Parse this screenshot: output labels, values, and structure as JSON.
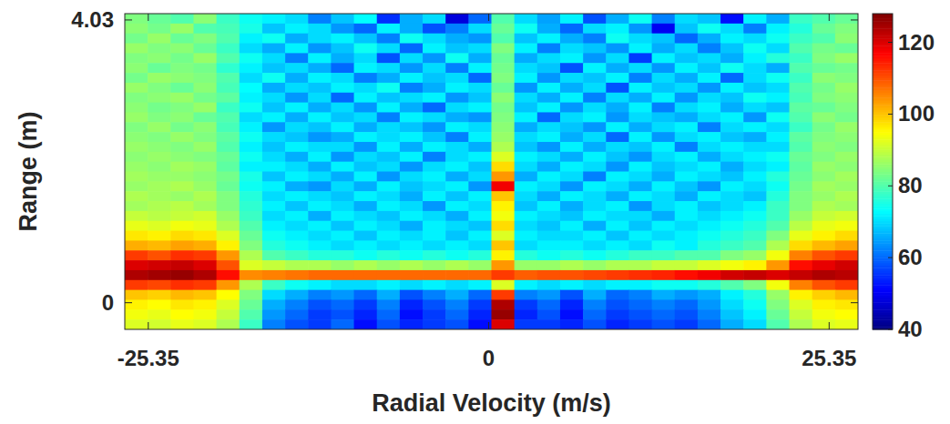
{
  "chart_data": {
    "type": "heatmap",
    "xlabel": "Radial Velocity (m/s)",
    "ylabel": "Range (m)",
    "xlim": [
      -27.1,
      27.5
    ],
    "xticks": [
      -25.35,
      0,
      25.35
    ],
    "ylim": [
      -0.38,
      4.12
    ],
    "yticks": [
      0,
      4.03
    ],
    "colorbar": {
      "lim": [
        40,
        128
      ],
      "ticks": [
        40,
        60,
        80,
        100,
        120
      ]
    },
    "z": [
      [
        84,
        82,
        80,
        85,
        78,
        74,
        72,
        70,
        62,
        68,
        73,
        55,
        66,
        70,
        48,
        60,
        80,
        70,
        65,
        72,
        58,
        66,
        74,
        62,
        70,
        68,
        52,
        72,
        66,
        78,
        80,
        82
      ],
      [
        85,
        83,
        86,
        80,
        79,
        75,
        68,
        72,
        70,
        64,
        60,
        72,
        66,
        58,
        62,
        70,
        82,
        74,
        66,
        60,
        70,
        72,
        64,
        50,
        68,
        74,
        70,
        62,
        72,
        76,
        82,
        84
      ],
      [
        83,
        86,
        82,
        84,
        80,
        72,
        74,
        66,
        70,
        72,
        68,
        62,
        74,
        70,
        66,
        64,
        80,
        68,
        72,
        66,
        62,
        74,
        70,
        68,
        60,
        66,
        72,
        70,
        74,
        78,
        80,
        85
      ],
      [
        86,
        84,
        85,
        82,
        78,
        70,
        66,
        72,
        64,
        68,
        74,
        70,
        60,
        72,
        68,
        70,
        84,
        72,
        62,
        70,
        68,
        64,
        72,
        66,
        70,
        62,
        68,
        74,
        70,
        80,
        83,
        82
      ],
      [
        84,
        85,
        83,
        86,
        80,
        74,
        70,
        62,
        72,
        66,
        70,
        58,
        70,
        64,
        74,
        66,
        82,
        66,
        70,
        72,
        64,
        70,
        56,
        72,
        68,
        70,
        66,
        72,
        76,
        78,
        84,
        86
      ],
      [
        85,
        82,
        84,
        83,
        77,
        72,
        68,
        70,
        66,
        60,
        72,
        70,
        64,
        70,
        62,
        72,
        83,
        70,
        68,
        58,
        72,
        66,
        70,
        64,
        72,
        68,
        74,
        70,
        66,
        80,
        82,
        83
      ],
      [
        83,
        86,
        85,
        84,
        80,
        70,
        74,
        66,
        72,
        70,
        62,
        66,
        72,
        68,
        70,
        60,
        84,
        72,
        64,
        70,
        68,
        72,
        62,
        70,
        66,
        72,
        60,
        70,
        74,
        78,
        85,
        84
      ],
      [
        86,
        84,
        82,
        85,
        79,
        73,
        66,
        70,
        68,
        72,
        70,
        74,
        62,
        66,
        72,
        70,
        82,
        64,
        72,
        66,
        70,
        58,
        72,
        68,
        70,
        64,
        72,
        68,
        70,
        80,
        83,
        86
      ],
      [
        84,
        85,
        86,
        83,
        81,
        72,
        70,
        64,
        70,
        60,
        72,
        68,
        70,
        72,
        64,
        68,
        85,
        70,
        66,
        72,
        62,
        70,
        66,
        72,
        64,
        70,
        68,
        74,
        72,
        79,
        84,
        85
      ],
      [
        85,
        83,
        84,
        86,
        78,
        74,
        68,
        72,
        66,
        70,
        64,
        72,
        66,
        60,
        70,
        72,
        83,
        68,
        72,
        64,
        70,
        66,
        72,
        62,
        70,
        72,
        66,
        70,
        68,
        81,
        82,
        84
      ],
      [
        86,
        84,
        85,
        82,
        80,
        70,
        72,
        66,
        72,
        68,
        70,
        62,
        72,
        70,
        66,
        64,
        84,
        72,
        60,
        70,
        72,
        64,
        70,
        68,
        66,
        70,
        72,
        64,
        74,
        80,
        85,
        83
      ],
      [
        84,
        86,
        83,
        85,
        79,
        72,
        64,
        70,
        68,
        72,
        66,
        70,
        68,
        64,
        72,
        70,
        85,
        66,
        70,
        68,
        64,
        72,
        66,
        70,
        72,
        62,
        70,
        72,
        70,
        78,
        83,
        86
      ],
      [
        85,
        84,
        86,
        84,
        81,
        74,
        70,
        68,
        64,
        66,
        72,
        70,
        72,
        68,
        62,
        72,
        86,
        70,
        72,
        66,
        70,
        60,
        72,
        64,
        70,
        72,
        68,
        66,
        72,
        81,
        84,
        85
      ],
      [
        86,
        85,
        84,
        86,
        80,
        72,
        68,
        72,
        70,
        70,
        64,
        72,
        66,
        72,
        70,
        66,
        88,
        68,
        64,
        72,
        66,
        70,
        68,
        72,
        62,
        70,
        72,
        70,
        70,
        80,
        85,
        84
      ],
      [
        85,
        86,
        85,
        84,
        82,
        74,
        70,
        66,
        72,
        64,
        70,
        68,
        72,
        62,
        70,
        72,
        92,
        72,
        70,
        66,
        72,
        68,
        64,
        70,
        72,
        66,
        70,
        72,
        74,
        82,
        84,
        86
      ],
      [
        86,
        85,
        87,
        86,
        81,
        72,
        72,
        70,
        66,
        72,
        68,
        70,
        64,
        70,
        72,
        68,
        98,
        70,
        66,
        72,
        70,
        64,
        72,
        68,
        70,
        72,
        66,
        70,
        72,
        81,
        86,
        85
      ],
      [
        87,
        86,
        86,
        85,
        83,
        75,
        68,
        72,
        70,
        66,
        72,
        64,
        70,
        72,
        66,
        70,
        104,
        66,
        72,
        70,
        62,
        72,
        70,
        66,
        72,
        70,
        68,
        72,
        76,
        82,
        85,
        87
      ],
      [
        86,
        87,
        88,
        86,
        82,
        74,
        72,
        66,
        64,
        70,
        66,
        72,
        68,
        70,
        72,
        64,
        118,
        72,
        70,
        64,
        72,
        70,
        66,
        72,
        68,
        64,
        72,
        70,
        74,
        83,
        87,
        86
      ],
      [
        88,
        87,
        86,
        88,
        84,
        76,
        70,
        72,
        70,
        68,
        72,
        70,
        66,
        72,
        68,
        72,
        100,
        70,
        66,
        72,
        70,
        66,
        72,
        70,
        66,
        72,
        70,
        68,
        76,
        84,
        86,
        88
      ],
      [
        87,
        88,
        89,
        87,
        84,
        77,
        72,
        68,
        72,
        70,
        66,
        72,
        70,
        64,
        72,
        70,
        96,
        68,
        72,
        66,
        70,
        72,
        64,
        70,
        72,
        68,
        70,
        72,
        78,
        84,
        88,
        87
      ],
      [
        90,
        89,
        90,
        91,
        86,
        78,
        70,
        72,
        66,
        72,
        70,
        68,
        72,
        70,
        66,
        72,
        94,
        72,
        70,
        68,
        72,
        70,
        70,
        66,
        72,
        70,
        72,
        74,
        78,
        86,
        90,
        91
      ],
      [
        93,
        92,
        94,
        93,
        88,
        80,
        72,
        70,
        72,
        68,
        72,
        70,
        66,
        72,
        70,
        68,
        98,
        70,
        68,
        72,
        66,
        72,
        68,
        72,
        70,
        72,
        74,
        76,
        80,
        89,
        93,
        94
      ],
      [
        97,
        96,
        98,
        97,
        92,
        82,
        74,
        72,
        70,
        72,
        68,
        72,
        70,
        72,
        68,
        72,
        92,
        72,
        70,
        70,
        72,
        68,
        72,
        70,
        72,
        74,
        76,
        78,
        84,
        93,
        96,
        98
      ],
      [
        102,
        101,
        103,
        102,
        96,
        84,
        76,
        74,
        72,
        70,
        72,
        70,
        72,
        70,
        72,
        70,
        100,
        70,
        72,
        72,
        70,
        72,
        70,
        74,
        72,
        76,
        78,
        80,
        88,
        98,
        101,
        103
      ],
      [
        112,
        110,
        113,
        112,
        104,
        88,
        80,
        78,
        76,
        76,
        74,
        76,
        74,
        76,
        74,
        76,
        96,
        76,
        74,
        76,
        74,
        76,
        78,
        78,
        80,
        80,
        84,
        86,
        94,
        106,
        110,
        112
      ],
      [
        120,
        121,
        122,
        120,
        110,
        92,
        90,
        88,
        88,
        86,
        88,
        86,
        88,
        86,
        88,
        86,
        104,
        86,
        86,
        88,
        86,
        88,
        88,
        90,
        90,
        92,
        94,
        96,
        104,
        116,
        119,
        121
      ],
      [
        124,
        125,
        126,
        124,
        116,
        105,
        106,
        107,
        108,
        108,
        108,
        108,
        108,
        108,
        108,
        108,
        112,
        109,
        110,
        110,
        111,
        112,
        113,
        114,
        116,
        118,
        121,
        122,
        120,
        122,
        124,
        123
      ],
      [
        112,
        111,
        113,
        112,
        104,
        88,
        78,
        74,
        72,
        70,
        70,
        72,
        70,
        72,
        70,
        72,
        92,
        72,
        70,
        72,
        70,
        72,
        72,
        74,
        74,
        76,
        80,
        84,
        94,
        106,
        110,
        112
      ],
      [
        100,
        99,
        101,
        100,
        95,
        84,
        70,
        66,
        62,
        64,
        60,
        66,
        58,
        62,
        66,
        60,
        112,
        62,
        64,
        58,
        66,
        60,
        62,
        66,
        64,
        66,
        72,
        76,
        86,
        96,
        99,
        101
      ],
      [
        96,
        95,
        97,
        96,
        92,
        82,
        66,
        62,
        58,
        60,
        56,
        62,
        54,
        58,
        62,
        56,
        124,
        56,
        60,
        54,
        62,
        58,
        60,
        62,
        60,
        64,
        70,
        74,
        84,
        92,
        96,
        97
      ],
      [
        94,
        93,
        95,
        94,
        90,
        80,
        64,
        60,
        56,
        58,
        54,
        60,
        52,
        56,
        60,
        54,
        126,
        54,
        58,
        52,
        60,
        56,
        58,
        60,
        58,
        62,
        68,
        72,
        82,
        90,
        94,
        95
      ],
      [
        92,
        91,
        93,
        92,
        88,
        78,
        62,
        58,
        56,
        60,
        52,
        58,
        54,
        56,
        58,
        52,
        120,
        56,
        56,
        54,
        58,
        54,
        56,
        58,
        56,
        60,
        66,
        70,
        80,
        88,
        92,
        93
      ]
    ]
  }
}
